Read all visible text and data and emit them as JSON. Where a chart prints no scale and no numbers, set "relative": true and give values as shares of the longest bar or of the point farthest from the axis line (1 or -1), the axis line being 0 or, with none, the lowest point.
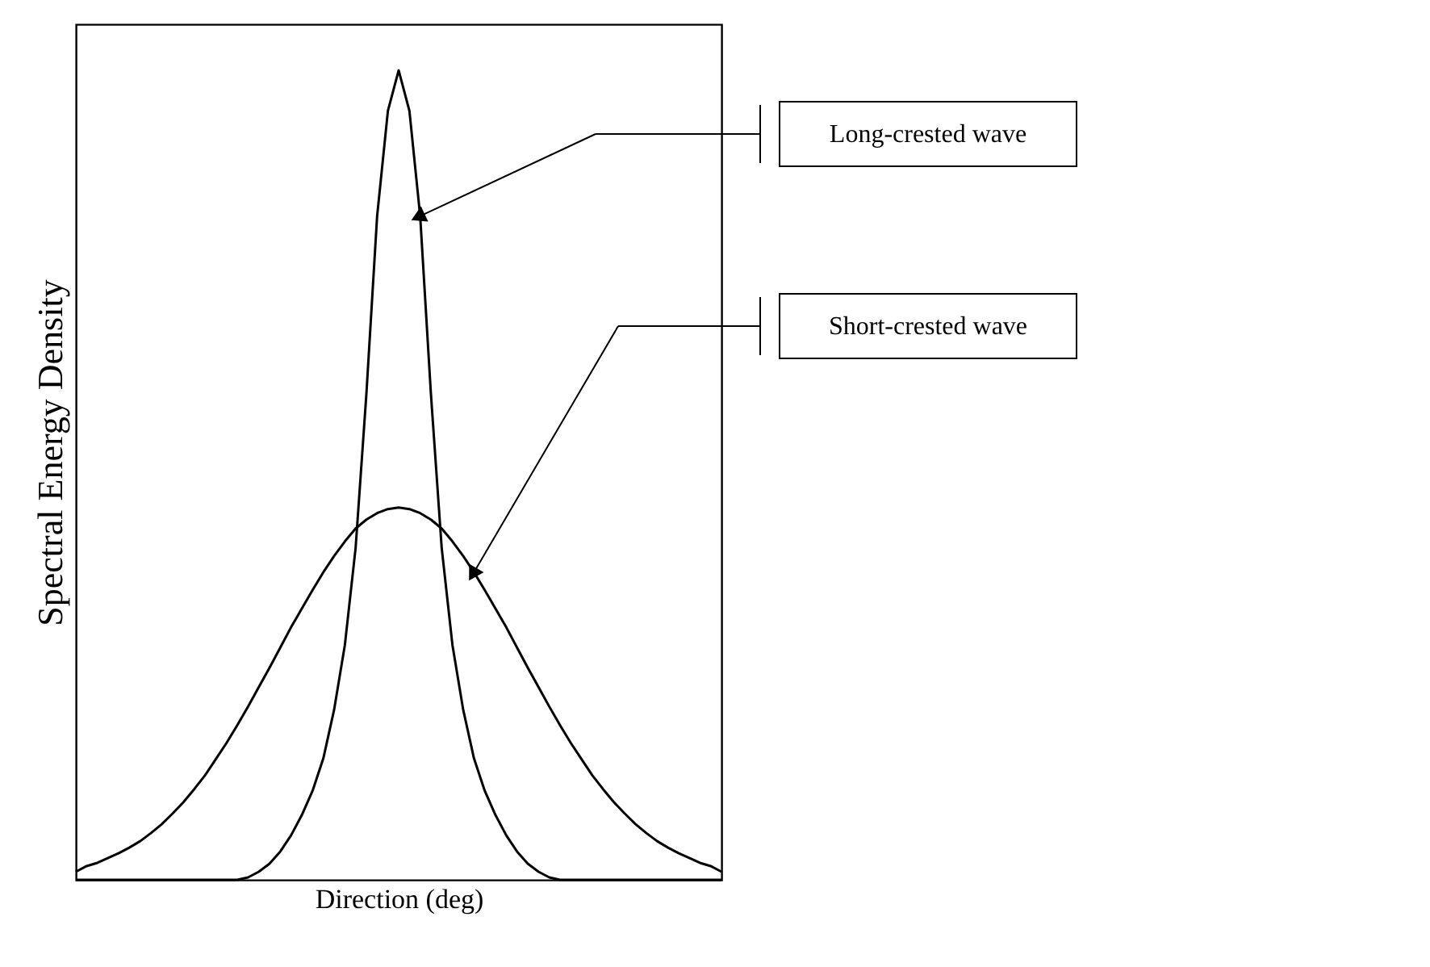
{
  "chart_data": {
    "type": "line",
    "relative": true,
    "xlabel": "Direction (deg)",
    "ylabel": "Spectral Energy Density",
    "grid": false,
    "legend": "right",
    "marker": "none",
    "line_style": "solid",
    "tick_labels": false,
    "categories": [
      null,
      null,
      null,
      null,
      null,
      null,
      null,
      null,
      null,
      null,
      null,
      null,
      null,
      null,
      null,
      null,
      null,
      null,
      null,
      null,
      null,
      null,
      null,
      null,
      null,
      null,
      null,
      null,
      null,
      null,
      null,
      null,
      null,
      null,
      null,
      null,
      null,
      null,
      null,
      null,
      null,
      null,
      null,
      null,
      null,
      null,
      null,
      null,
      null,
      null,
      null,
      null,
      null,
      null,
      null,
      null,
      null,
      null,
      null,
      null,
      null
    ],
    "series": [
      {
        "name": "Long-crested wave",
        "color": "#000000",
        "values": [
          0,
          0,
          0,
          0,
          0,
          0,
          0,
          0,
          0,
          0,
          0,
          0,
          0,
          0,
          0,
          0,
          0.003,
          0.01,
          0.02,
          0.035,
          0.055,
          0.08,
          0.11,
          0.15,
          0.21,
          0.29,
          0.41,
          0.6,
          0.82,
          0.95,
          1,
          0.95,
          0.82,
          0.6,
          0.41,
          0.29,
          0.21,
          0.15,
          0.11,
          0.08,
          0.055,
          0.035,
          0.02,
          0.01,
          0.003,
          0,
          0,
          0,
          0,
          0,
          0,
          0,
          0,
          0,
          0,
          0,
          0,
          0,
          0,
          0,
          0
        ]
      },
      {
        "name": "Short-crested wave",
        "color": "#000000",
        "values": [
          0.01,
          0.017,
          0.021,
          0.027,
          0.033,
          0.04,
          0.048,
          0.058,
          0.069,
          0.082,
          0.096,
          0.112,
          0.129,
          0.149,
          0.169,
          0.191,
          0.214,
          0.238,
          0.262,
          0.287,
          0.312,
          0.335,
          0.358,
          0.38,
          0.4,
          0.418,
          0.434,
          0.445,
          0.453,
          0.458,
          0.46,
          0.458,
          0.453,
          0.445,
          0.434,
          0.418,
          0.4,
          0.38,
          0.358,
          0.335,
          0.312,
          0.287,
          0.262,
          0.238,
          0.214,
          0.191,
          0.169,
          0.149,
          0.129,
          0.112,
          0.096,
          0.082,
          0.069,
          0.058,
          0.048,
          0.04,
          0.033,
          0.027,
          0.021,
          0.017,
          0.01
        ]
      }
    ]
  }
}
